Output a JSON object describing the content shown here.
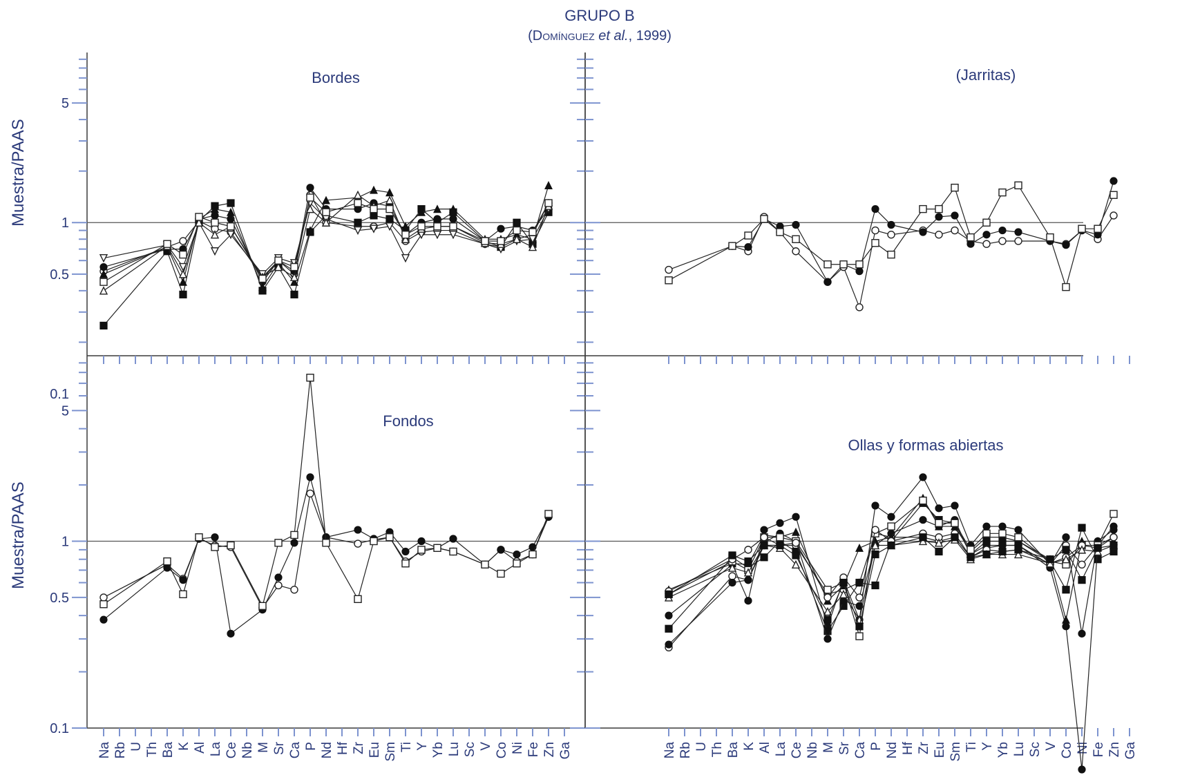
{
  "title": {
    "line1": "GRUPO B",
    "line2_prefix": "(",
    "line2_author": "Domínguez",
    "line2_etal": " et al.",
    "line2_suffix": ", 1999)"
  },
  "colors": {
    "axis": "#7d93cf",
    "text": "#2b3a7a",
    "line": "#222222"
  },
  "chart_data": [
    {
      "type": "line",
      "panel": "Bordes",
      "title": "Bordes",
      "ylabel": "Muestra/PAAS",
      "yscale": "log",
      "ylim": [
        0.1,
        9.5
      ],
      "yticks": [
        {
          "value": 0.1,
          "label": "0.1"
        },
        {
          "value": 0.5,
          "label": "0.5"
        },
        {
          "value": 1,
          "label": "1"
        },
        {
          "value": 5,
          "label": "5"
        }
      ],
      "reference_line": 1,
      "categories": [
        "Na",
        "Rb",
        "U",
        "Th",
        "Ba",
        "K",
        "Al",
        "La",
        "Ce",
        "Nb",
        "M",
        "Sr",
        "Ca",
        "P",
        "Nd",
        "Hf",
        "Zr",
        "Eu",
        "Sm",
        "Ti",
        "Y",
        "Yb",
        "Lu",
        "Sc",
        "V",
        "Co",
        "Ni",
        "Fe",
        "Zn",
        "Ga"
      ],
      "series": [
        {
          "marker": "circle-open",
          "values": [
            0.52,
            null,
            null,
            null,
            0.72,
            0.78,
            1.02,
            0.92,
            0.88,
            null,
            0.48,
            0.6,
            0.5,
            1.45,
            1.0,
            null,
            0.95,
            0.95,
            1.0,
            0.78,
            0.88,
            0.9,
            0.9,
            null,
            0.75,
            0.72,
            0.8,
            0.85,
            1.3,
            null
          ]
        },
        {
          "marker": "circle-filled",
          "values": [
            0.55,
            null,
            null,
            null,
            0.7,
            0.7,
            1.05,
            1.1,
            1.05,
            null,
            0.45,
            0.6,
            0.52,
            1.6,
            1.2,
            null,
            1.2,
            1.3,
            1.25,
            0.85,
            1.0,
            1.05,
            1.05,
            null,
            0.78,
            0.92,
            0.95,
            0.9,
            1.2,
            null
          ]
        },
        {
          "marker": "square-filled",
          "values": [
            0.25,
            null,
            null,
            null,
            0.68,
            0.38,
            1.02,
            1.25,
            1.3,
            null,
            0.4,
            0.55,
            0.38,
            0.88,
            1.1,
            null,
            1.0,
            1.1,
            1.05,
            0.9,
            1.2,
            1.0,
            1.15,
            null,
            0.78,
            0.72,
            1.0,
            0.75,
            1.15,
            null
          ]
        },
        {
          "marker": "triangle-filled",
          "values": [
            0.5,
            null,
            null,
            null,
            0.72,
            0.45,
            1.05,
            1.2,
            1.15,
            null,
            0.42,
            0.58,
            0.45,
            0.9,
            1.35,
            null,
            1.4,
            1.55,
            1.5,
            0.95,
            1.15,
            1.2,
            1.2,
            null,
            0.8,
            0.8,
            0.85,
            0.8,
            1.65,
            null
          ]
        },
        {
          "marker": "triangle-down-open",
          "values": [
            0.62,
            null,
            null,
            null,
            0.74,
            0.55,
            1.0,
            0.68,
            0.85,
            null,
            0.5,
            0.62,
            0.58,
            1.3,
            1.05,
            null,
            0.9,
            0.92,
            0.95,
            0.62,
            0.85,
            0.85,
            0.85,
            null,
            0.75,
            0.7,
            0.78,
            0.8,
            1.2,
            null
          ]
        },
        {
          "marker": "triangle-open",
          "values": [
            0.4,
            null,
            null,
            null,
            0.73,
            0.5,
            1.0,
            0.85,
            0.95,
            null,
            0.48,
            0.55,
            0.48,
            1.2,
            1.0,
            null,
            1.45,
            1.25,
            1.35,
            0.8,
            0.92,
            0.95,
            0.95,
            null,
            0.76,
            0.75,
            0.8,
            0.72,
            1.25,
            null
          ]
        },
        {
          "marker": "square-open",
          "values": [
            0.45,
            null,
            null,
            null,
            0.75,
            0.65,
            1.08,
            1.0,
            0.95,
            null,
            0.47,
            0.6,
            0.55,
            1.4,
            1.15,
            null,
            1.3,
            1.2,
            1.2,
            0.85,
            0.95,
            0.95,
            0.95,
            null,
            0.78,
            0.78,
            0.9,
            0.88,
            1.3,
            null
          ]
        }
      ]
    },
    {
      "type": "line",
      "panel": "Jarritas",
      "title": "(Jarritas)",
      "yscale": "log",
      "ylim": [
        0.1,
        9.5
      ],
      "reference_line": 1,
      "categories": [
        "Na",
        "Rb",
        "U",
        "Th",
        "Ba",
        "K",
        "Al",
        "La",
        "Ce",
        "Nb",
        "M",
        "Sr",
        "Ca",
        "P",
        "Nd",
        "Hf",
        "Zr",
        "Eu",
        "Sm",
        "Ti",
        "Y",
        "Yb",
        "Lu",
        "Sc",
        "V",
        "Co",
        "Ni",
        "Fe",
        "Zn",
        "Ga"
      ],
      "series": [
        {
          "marker": "circle-open",
          "values": [
            0.53,
            null,
            null,
            null,
            0.73,
            0.68,
            1.08,
            0.88,
            0.68,
            null,
            0.45,
            0.55,
            0.32,
            0.9,
            0.85,
            null,
            0.9,
            0.85,
            0.9,
            0.78,
            0.75,
            0.78,
            0.78,
            null,
            0.78,
            0.75,
            0.9,
            0.8,
            1.1,
            null
          ]
        },
        {
          "marker": "circle-filled",
          "values": [
            null,
            null,
            null,
            null,
            0.73,
            0.72,
            1.05,
            0.95,
            0.97,
            null,
            0.45,
            0.57,
            0.52,
            1.2,
            0.97,
            null,
            0.88,
            1.08,
            1.1,
            0.75,
            0.85,
            0.9,
            0.88,
            null,
            0.78,
            0.74,
            0.9,
            0.85,
            1.75,
            null
          ]
        },
        {
          "marker": "square-open",
          "values": [
            0.46,
            null,
            null,
            null,
            0.73,
            0.84,
            1.05,
            0.88,
            0.8,
            null,
            0.57,
            0.57,
            0.57,
            0.76,
            0.65,
            null,
            1.2,
            1.2,
            1.6,
            0.82,
            1.0,
            1.5,
            1.65,
            null,
            0.82,
            0.42,
            0.92,
            0.92,
            1.45,
            null
          ]
        }
      ]
    },
    {
      "type": "line",
      "panel": "Fondos",
      "title": "Fondos",
      "ylabel": "Muestra/PAAS",
      "yscale": "log",
      "ylim": [
        0.1,
        9.5
      ],
      "yticks": [
        {
          "value": 0.1,
          "label": "0.1"
        },
        {
          "value": 0.5,
          "label": "0.5"
        },
        {
          "value": 1,
          "label": "1"
        },
        {
          "value": 5,
          "label": "5"
        }
      ],
      "reference_line": 1,
      "categories": [
        "Na",
        "Rb",
        "U",
        "Th",
        "Ba",
        "K",
        "Al",
        "La",
        "Ce",
        "Nb",
        "M",
        "Sr",
        "Ca",
        "P",
        "Nd",
        "Hf",
        "Zr",
        "Eu",
        "Sm",
        "Ti",
        "Y",
        "Yb",
        "Lu",
        "Sc",
        "V",
        "Co",
        "Ni",
        "Fe",
        "Zn",
        "Ga"
      ],
      "series": [
        {
          "marker": "circle-open",
          "values": [
            0.5,
            null,
            null,
            null,
            0.75,
            0.63,
            1.03,
            0.95,
            0.93,
            null,
            0.44,
            0.58,
            0.55,
            1.8,
            1.05,
            null,
            0.97,
            1.02,
            1.05,
            0.78,
            0.88,
            0.92,
            0.88,
            null,
            0.75,
            0.9,
            0.78,
            0.85,
            1.35,
            null
          ]
        },
        {
          "marker": "circle-filled",
          "values": [
            0.38,
            null,
            null,
            null,
            0.72,
            0.62,
            1.03,
            1.05,
            0.32,
            null,
            0.43,
            0.64,
            0.98,
            2.2,
            1.05,
            null,
            1.15,
            1.03,
            1.12,
            0.88,
            1.0,
            0.92,
            1.03,
            null,
            0.75,
            0.9,
            0.85,
            0.93,
            1.35,
            null
          ]
        },
        {
          "marker": "square-open",
          "values": [
            0.46,
            null,
            null,
            null,
            0.78,
            0.52,
            1.05,
            0.93,
            0.95,
            null,
            0.45,
            0.98,
            1.08,
            7.5,
            0.98,
            null,
            0.49,
            1.0,
            1.05,
            0.76,
            0.9,
            0.92,
            0.88,
            null,
            0.75,
            0.67,
            0.76,
            0.85,
            1.4,
            null
          ]
        }
      ]
    },
    {
      "type": "line",
      "panel": "Ollas",
      "title": "Ollas y formas abiertas",
      "yscale": "log",
      "ylim": [
        0.1,
        9.5
      ],
      "reference_line": 1,
      "categories": [
        "Na",
        "Rb",
        "U",
        "Th",
        "Ba",
        "K",
        "Al",
        "La",
        "Ce",
        "Nb",
        "M",
        "Sr",
        "Ca",
        "P",
        "Nd",
        "Hf",
        "Zr",
        "Eu",
        "Sm",
        "Ti",
        "Y",
        "Yb",
        "Lu",
        "Sc",
        "V",
        "Co",
        "Ni",
        "Fe",
        "Zn",
        "Ga"
      ],
      "series": [
        {
          "marker": "circle-filled",
          "values": [
            0.4,
            null,
            null,
            null,
            0.75,
            0.48,
            1.15,
            1.25,
            1.35,
            null,
            0.35,
            0.62,
            0.38,
            1.55,
            1.35,
            null,
            2.2,
            1.5,
            1.55,
            0.95,
            1.2,
            1.2,
            1.15,
            null,
            0.75,
            1.05,
            0.32,
            1.0,
            1.15,
            null
          ]
        },
        {
          "marker": "circle-open",
          "values": [
            0.27,
            null,
            null,
            null,
            0.65,
            0.62,
            0.95,
            0.95,
            0.95,
            null,
            0.52,
            0.55,
            0.6,
            1.1,
            1.05,
            null,
            1.05,
            1.0,
            1.05,
            0.82,
            0.92,
            0.95,
            0.95,
            null,
            0.75,
            0.95,
            0.75,
            0.95,
            1.05,
            null
          ]
        },
        {
          "marker": "square-filled",
          "values": [
            0.34,
            null,
            null,
            null,
            0.82,
            0.72,
            0.82,
            1.0,
            0.88,
            null,
            0.33,
            0.45,
            0.6,
            0.58,
            1.0,
            null,
            1.6,
            1.3,
            1.25,
            0.85,
            1.0,
            1.0,
            1.0,
            null,
            0.78,
            0.55,
            1.18,
            0.8,
            0.88,
            null
          ]
        },
        {
          "marker": "circle-filled",
          "values": [
            0.28,
            null,
            null,
            null,
            0.6,
            0.62,
            0.98,
            1.1,
            1.0,
            null,
            0.3,
            0.48,
            0.45,
            0.95,
            1.1,
            null,
            1.3,
            1.2,
            1.3,
            0.85,
            0.95,
            0.95,
            0.95,
            null,
            0.72,
            0.35,
            0.06,
            0.95,
            1.2,
            null
          ]
        },
        {
          "marker": "triangle-filled",
          "values": [
            0.55,
            null,
            null,
            null,
            0.76,
            0.75,
            1.08,
            1.05,
            1.12,
            null,
            0.48,
            0.58,
            0.92,
            1.0,
            1.05,
            null,
            1.7,
            1.2,
            1.2,
            0.88,
            1.05,
            1.05,
            1.0,
            null,
            0.8,
            0.38,
            1.0,
            1.0,
            1.0,
            null
          ]
        },
        {
          "marker": "square-open",
          "values": [
            0.52,
            null,
            null,
            null,
            0.78,
            0.7,
            1.05,
            1.05,
            1.0,
            null,
            0.55,
            0.6,
            0.31,
            1.1,
            1.2,
            null,
            1.65,
            1.25,
            1.25,
            0.9,
            1.1,
            1.1,
            1.05,
            null,
            0.78,
            0.75,
            0.95,
            0.95,
            1.4,
            null
          ]
        },
        {
          "marker": "circle-open",
          "values": [
            0.54,
            null,
            null,
            null,
            0.8,
            0.9,
            1.05,
            0.95,
            0.98,
            null,
            0.5,
            0.64,
            0.5,
            1.15,
            1.0,
            null,
            1.1,
            1.05,
            1.1,
            0.82,
            0.9,
            0.88,
            0.9,
            null,
            0.76,
            0.82,
            0.95,
            0.92,
            1.05,
            null
          ]
        },
        {
          "marker": "triangle-open",
          "values": [
            0.5,
            null,
            null,
            null,
            0.72,
            0.68,
            0.95,
            0.92,
            0.75,
            null,
            0.42,
            0.52,
            0.38,
            0.95,
            0.95,
            null,
            1.0,
            0.98,
            1.02,
            0.8,
            0.85,
            0.85,
            0.85,
            null,
            0.76,
            0.8,
            0.9,
            0.88,
            0.95,
            null
          ]
        },
        {
          "marker": "square-filled",
          "values": [
            0.52,
            null,
            null,
            null,
            0.84,
            0.78,
            0.95,
            0.95,
            0.84,
            null,
            0.38,
            0.6,
            0.35,
            0.85,
            0.95,
            null,
            1.05,
            0.88,
            1.05,
            0.82,
            0.85,
            0.88,
            0.9,
            null,
            0.8,
            0.9,
            0.62,
            0.92,
            0.95,
            null
          ]
        }
      ]
    }
  ]
}
